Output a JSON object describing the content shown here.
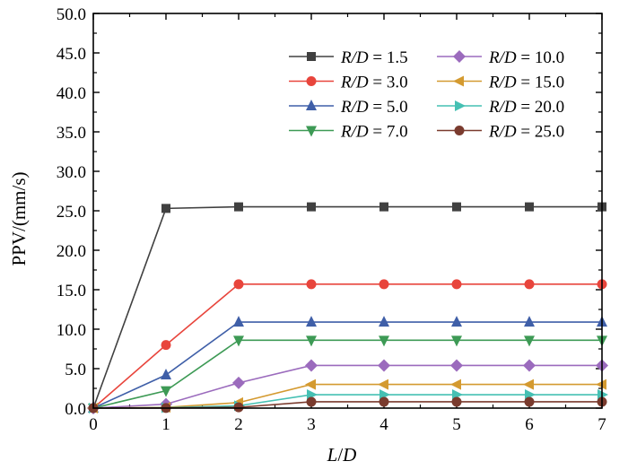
{
  "chart_data": {
    "type": "line",
    "title": "",
    "xlabel": "L/D",
    "xlabel_parts": {
      "var1": "L",
      "sep": "/",
      "var2": "D"
    },
    "ylabel": "PPV/(mm/s)",
    "xlim": [
      0,
      7
    ],
    "ylim": [
      0,
      50
    ],
    "x": [
      0,
      1,
      2,
      3,
      4,
      5,
      6,
      7
    ],
    "x_ticks": [
      "0",
      "1",
      "2",
      "3",
      "4",
      "5",
      "6",
      "7"
    ],
    "y_ticks": [
      "0.0",
      "5.0",
      "10.0",
      "15.0",
      "20.0",
      "25.0",
      "30.0",
      "35.0",
      "40.0",
      "45.0",
      "50.0"
    ],
    "grid": false,
    "legend_position": "top-right",
    "legend_columns": 2,
    "series": [
      {
        "name": "R/D = 1.5",
        "label_var": "R/D",
        "label_value": "= 1.5",
        "color": "#404040",
        "marker": "square",
        "values": [
          0,
          25.3,
          25.5,
          25.5,
          25.5,
          25.5,
          25.5,
          25.5
        ]
      },
      {
        "name": "R/D = 3.0",
        "label_var": "R/D",
        "label_value": "= 3.0",
        "color": "#e8453c",
        "marker": "circle",
        "values": [
          0,
          8.0,
          15.7,
          15.7,
          15.7,
          15.7,
          15.7,
          15.7
        ]
      },
      {
        "name": "R/D = 5.0",
        "label_var": "R/D",
        "label_value": "= 5.0",
        "color": "#3f5fa8",
        "marker": "triangle-up",
        "values": [
          0,
          4.2,
          10.9,
          10.9,
          10.9,
          10.9,
          10.9,
          10.9
        ]
      },
      {
        "name": "R/D = 7.0",
        "label_var": "R/D",
        "label_value": "= 7.0",
        "color": "#3d9a55",
        "marker": "triangle-down",
        "values": [
          0,
          2.2,
          8.6,
          8.6,
          8.6,
          8.6,
          8.6,
          8.6
        ]
      },
      {
        "name": "R/D = 10.0",
        "label_var": "R/D",
        "label_value": "= 10.0",
        "color": "#9b6bbd",
        "marker": "diamond",
        "values": [
          0,
          0.5,
          3.2,
          5.4,
          5.4,
          5.4,
          5.4,
          5.4
        ]
      },
      {
        "name": "R/D = 15.0",
        "label_var": "R/D",
        "label_value": "= 15.0",
        "color": "#d49a30",
        "marker": "triangle-left",
        "values": [
          0,
          0.1,
          0.7,
          3.0,
          3.0,
          3.0,
          3.0,
          3.0
        ]
      },
      {
        "name": "R/D = 20.0",
        "label_var": "R/D",
        "label_value": "= 20.0",
        "color": "#45c0b3",
        "marker": "triangle-right",
        "values": [
          0,
          0.05,
          0.3,
          1.7,
          1.7,
          1.7,
          1.7,
          1.7
        ]
      },
      {
        "name": "R/D = 25.0",
        "label_var": "R/D",
        "label_value": "= 25.0",
        "color": "#7a3b2e",
        "marker": "circle",
        "values": [
          0,
          0.02,
          0.1,
          0.8,
          0.8,
          0.8,
          0.8,
          0.8
        ]
      }
    ]
  }
}
